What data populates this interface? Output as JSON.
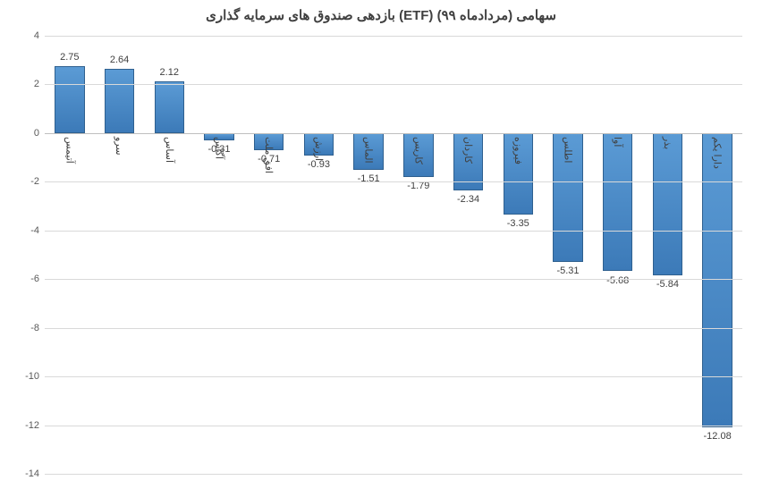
{
  "chart": {
    "type": "bar",
    "title": "بازدهی صندوق های سرمایه گذاری (ETF) سهامی (مردادماه ۹۹)",
    "title_fontsize": 15,
    "title_color": "#404040",
    "categories": [
      "آتیمس",
      "سرو",
      "آساس",
      "آگاس",
      "افق ملت",
      "ارزش",
      "الماس",
      "کاریس",
      "کاردان",
      "فیروزه",
      "اطلس",
      "آوا",
      "بذر",
      "دارا یکم"
    ],
    "values": [
      2.75,
      2.64,
      2.12,
      -0.31,
      -0.71,
      -0.93,
      -1.51,
      -1.79,
      -2.34,
      -3.35,
      -5.31,
      -5.68,
      -5.84,
      -12.08
    ],
    "bar_color_top": "#5b9bd5",
    "bar_color_bottom": "#3c7ab8",
    "bar_border_color": "#2f608f",
    "background_color": "#ffffff",
    "grid_color": "#d9d9d9",
    "axis_label_color": "#595959",
    "value_label_color": "#404040",
    "ylim_min": -14,
    "ylim_max": 4,
    "ytick_step": 2,
    "yticks": [
      4,
      2,
      0,
      -2,
      -4,
      -6,
      -8,
      -10,
      -12,
      -14
    ],
    "bar_width_ratio": 0.6,
    "label_fontsize": 11,
    "value_fontsize": 11
  }
}
